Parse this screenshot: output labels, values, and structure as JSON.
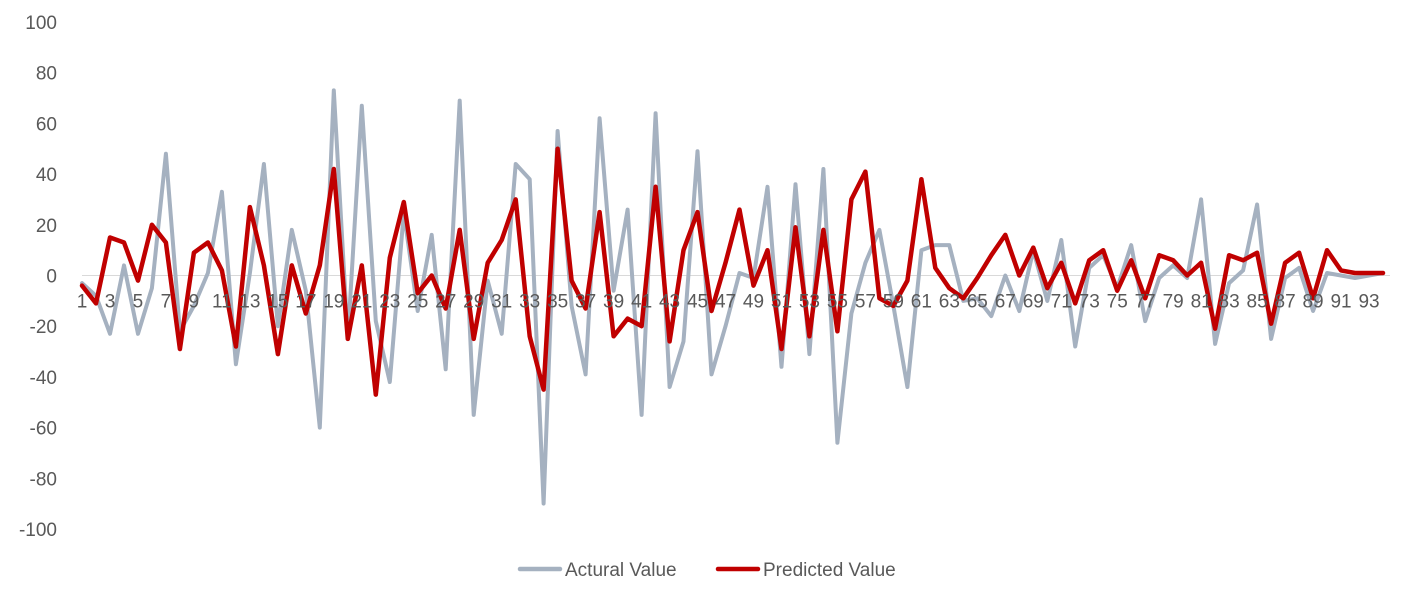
{
  "chart_data": {
    "type": "line",
    "title": "",
    "xlabel": "",
    "ylabel": "",
    "ylim": [
      -100,
      100
    ],
    "yticks": [
      100,
      80,
      60,
      40,
      20,
      0,
      -20,
      -40,
      -60,
      -80,
      -100
    ],
    "x": [
      1,
      2,
      3,
      4,
      5,
      6,
      7,
      8,
      9,
      10,
      11,
      12,
      13,
      14,
      15,
      16,
      17,
      18,
      19,
      20,
      21,
      22,
      23,
      24,
      25,
      26,
      27,
      28,
      29,
      30,
      31,
      32,
      33,
      34,
      35,
      36,
      37,
      38,
      39,
      40,
      41,
      42,
      43,
      44,
      45,
      46,
      47,
      48,
      49,
      50,
      51,
      52,
      53,
      54,
      55,
      56,
      57,
      58,
      59,
      60,
      61,
      62,
      63,
      64,
      65,
      66,
      67,
      68,
      69,
      70,
      71,
      72,
      73,
      74,
      75,
      76,
      77,
      78,
      79,
      80,
      81,
      82,
      83,
      84,
      85,
      86,
      87,
      88,
      89,
      90,
      91,
      92,
      93,
      94
    ],
    "xtick_labels": [
      "1",
      "3",
      "5",
      "7",
      "9",
      "11",
      "13",
      "15",
      "17",
      "19",
      "21",
      "23",
      "25",
      "27",
      "29",
      "31",
      "33",
      "35",
      "37",
      "39",
      "41",
      "43",
      "45",
      "47",
      "49",
      "51",
      "53",
      "55",
      "57",
      "59",
      "61",
      "63",
      "65",
      "67",
      "69",
      "71",
      "73",
      "75",
      "77",
      "79",
      "81",
      "83",
      "85",
      "87",
      "89",
      "91",
      "93"
    ],
    "grid": false,
    "legend_position": "bottom",
    "series": [
      {
        "name": "Actural Value",
        "color": "#a5b1c0",
        "values": [
          -3,
          -8,
          -23,
          4,
          -23,
          -5,
          48,
          -22,
          -12,
          1,
          33,
          -35,
          1,
          44,
          -20,
          18,
          -6,
          -60,
          73,
          -25,
          67,
          -18,
          -42,
          25,
          -14,
          16,
          -37,
          69,
          -55,
          -2,
          -23,
          44,
          38,
          -90,
          57,
          -12,
          -39,
          62,
          -6,
          26,
          -55,
          64,
          -44,
          -26,
          49,
          -39,
          -20,
          1,
          -1,
          35,
          -36,
          36,
          -31,
          42,
          -66,
          -15,
          5,
          18,
          -12,
          -44,
          10,
          12,
          12,
          -10,
          -9,
          -16,
          0,
          -14,
          10,
          -10,
          14,
          -28,
          3,
          8,
          -5,
          12,
          -18,
          -1,
          4,
          -1,
          30,
          -27,
          -3,
          2,
          28,
          -25,
          -1,
          3,
          -14,
          1,
          0,
          -1,
          0,
          1
        ]
      },
      {
        "name": "Predicted Value",
        "color": "#c00000",
        "values": [
          -4,
          -11,
          15,
          13,
          -2,
          20,
          13,
          -29,
          9,
          13,
          2,
          -28,
          27,
          4,
          -31,
          4,
          -15,
          4,
          42,
          -25,
          4,
          -47,
          7,
          29,
          -7,
          0,
          -13,
          18,
          -25,
          5,
          14,
          30,
          -24,
          -45,
          50,
          -2,
          -13,
          25,
          -24,
          -17,
          -20,
          35,
          -26,
          10,
          25,
          -14,
          5,
          26,
          -4,
          10,
          -29,
          19,
          -24,
          18,
          -22,
          30,
          41,
          -9,
          -12,
          -2,
          38,
          3,
          -5,
          -9,
          -1,
          8,
          16,
          0,
          11,
          -5,
          5,
          -11,
          6,
          10,
          -6,
          6,
          -9,
          8,
          6,
          0,
          5,
          -21,
          8,
          6,
          9,
          -19,
          5,
          9,
          -9,
          10,
          2,
          1,
          1,
          1
        ]
      }
    ]
  }
}
